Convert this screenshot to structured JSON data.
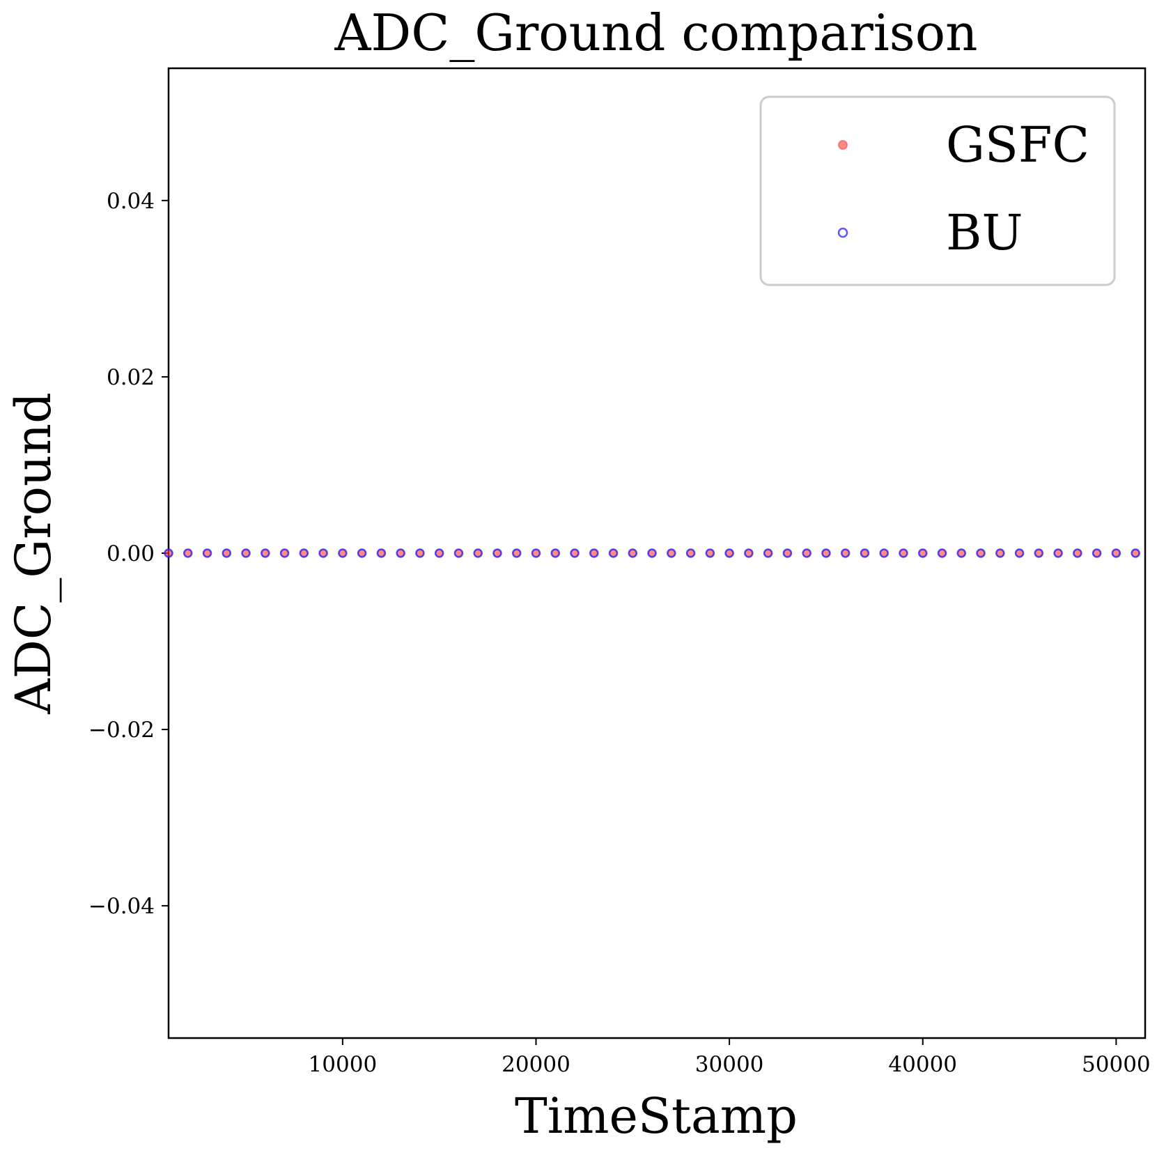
{
  "chart_data": {
    "type": "scatter",
    "title": "ADC_Ground comparison",
    "xlabel": "TimeStamp",
    "ylabel": "ADC_Ground",
    "xlim": [
      1000,
      51500
    ],
    "ylim": [
      -0.055,
      0.055
    ],
    "x_ticks": [
      10000,
      20000,
      30000,
      40000,
      50000
    ],
    "x_tick_labels": [
      "10000",
      "20000",
      "30000",
      "40000",
      "50000"
    ],
    "y_ticks": [
      0.04,
      0.02,
      0.0,
      -0.02,
      -0.04
    ],
    "y_tick_labels": [
      "0.04",
      "0.02",
      "0.00",
      "−0.02",
      "−0.04"
    ],
    "grid": false,
    "legend_position": "top-right",
    "x": [
      1000,
      2000,
      3000,
      4000,
      5000,
      6000,
      7000,
      8000,
      9000,
      10000,
      11000,
      12000,
      13000,
      14000,
      15000,
      16000,
      17000,
      18000,
      19000,
      20000,
      21000,
      22000,
      23000,
      24000,
      25000,
      26000,
      27000,
      28000,
      29000,
      30000,
      31000,
      32000,
      33000,
      34000,
      35000,
      36000,
      37000,
      38000,
      39000,
      40000,
      41000,
      42000,
      43000,
      44000,
      45000,
      46000,
      47000,
      48000,
      49000,
      50000,
      51000
    ],
    "series": [
      {
        "name": "GSFC",
        "color": "#ff4040",
        "marker": "filled-circle",
        "values": [
          0,
          0,
          0,
          0,
          0,
          0,
          0,
          0,
          0,
          0,
          0,
          0,
          0,
          0,
          0,
          0,
          0,
          0,
          0,
          0,
          0,
          0,
          0,
          0,
          0,
          0,
          0,
          0,
          0,
          0,
          0,
          0,
          0,
          0,
          0,
          0,
          0,
          0,
          0,
          0,
          0,
          0,
          0,
          0,
          0,
          0,
          0,
          0,
          0,
          0,
          0
        ]
      },
      {
        "name": "BU",
        "color": "#2020ff",
        "marker": "open-circle",
        "values": [
          0,
          0,
          0,
          0,
          0,
          0,
          0,
          0,
          0,
          0,
          0,
          0,
          0,
          0,
          0,
          0,
          0,
          0,
          0,
          0,
          0,
          0,
          0,
          0,
          0,
          0,
          0,
          0,
          0,
          0,
          0,
          0,
          0,
          0,
          0,
          0,
          0,
          0,
          0,
          0,
          0,
          0,
          0,
          0,
          0,
          0,
          0,
          0,
          0,
          0,
          0
        ]
      }
    ]
  }
}
